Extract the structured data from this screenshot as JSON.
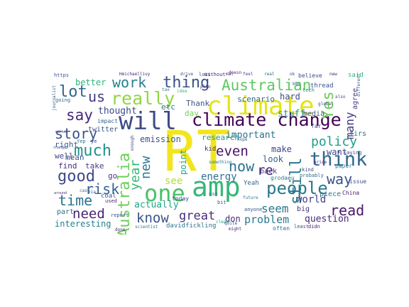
{
  "words": [
    {
      "id": "rt",
      "text": "RT",
      "color": "#f2e51d"
    },
    {
      "id": "amp",
      "text": "amp",
      "color": "#35b779"
    },
    {
      "id": "one",
      "text": "one",
      "color": "#4ac16d"
    },
    {
      "id": "climate",
      "text": "climate",
      "color": "#e5e419"
    },
    {
      "id": "climate-change",
      "text": "climate change",
      "color": "#440154"
    },
    {
      "id": "will",
      "text": "will",
      "color": "#3e4a89"
    },
    {
      "id": "think",
      "text": "think",
      "color": "#31688e"
    },
    {
      "id": "people",
      "text": "people",
      "color": "#2a788e"
    },
    {
      "id": "australia",
      "text": "Australia",
      "color": "#6ece58"
    },
    {
      "id": "australian",
      "text": "Australian",
      "color": "#5ec962"
    },
    {
      "id": "really",
      "text": "really",
      "color": "#90d743"
    },
    {
      "id": "thing",
      "text": "thing",
      "color": "#3b528b"
    },
    {
      "id": "work",
      "text": "work",
      "color": "#26828e"
    },
    {
      "id": "lot",
      "text": "lot",
      "color": "#31688e"
    },
    {
      "id": "us",
      "text": "us",
      "color": "#443983"
    },
    {
      "id": "say",
      "text": "say",
      "color": "#482878"
    },
    {
      "id": "story",
      "text": "story",
      "color": "#3b528b"
    },
    {
      "id": "much",
      "text": "much",
      "color": "#21918c"
    },
    {
      "id": "good",
      "text": "good",
      "color": "#3e4a89"
    },
    {
      "id": "new",
      "text": "new",
      "color": "#2a788e"
    },
    {
      "id": "year",
      "text": "year",
      "color": "#35b779"
    },
    {
      "id": "time",
      "text": "time",
      "color": "#2c728e"
    },
    {
      "id": "risk",
      "text": "risk",
      "color": "#33638d"
    },
    {
      "id": "need",
      "text": "need",
      "color": "#482475"
    },
    {
      "id": "know",
      "text": "know",
      "color": "#3b528b"
    },
    {
      "id": "great",
      "text": "great",
      "color": "#472d7b"
    },
    {
      "id": "even",
      "text": "even",
      "color": "#471365"
    },
    {
      "id": "now",
      "text": "now",
      "color": "#2d708e"
    },
    {
      "id": "re",
      "text": "re",
      "color": "#482878"
    },
    {
      "id": "energy",
      "text": "energy",
      "color": "#2c728e"
    },
    {
      "id": "see",
      "text": "see",
      "color": "#b5de2b"
    },
    {
      "id": "yes",
      "text": "Yes",
      "color": "#6ece58"
    },
    {
      "id": "policy",
      "text": "policy",
      "color": "#1f9e89"
    },
    {
      "id": "still",
      "text": "still",
      "color": "#2a788e"
    },
    {
      "id": "many",
      "text": "many",
      "color": "#453781"
    },
    {
      "id": "way",
      "text": "way",
      "color": "#3b528b"
    },
    {
      "id": "read",
      "text": "read",
      "color": "#481a6c"
    },
    {
      "id": "seem",
      "text": "seem",
      "color": "#2a788e"
    },
    {
      "id": "problem",
      "text": "problem",
      "color": "#2a788e"
    },
    {
      "id": "world",
      "text": "world",
      "color": "#433e85"
    },
    {
      "id": "question",
      "text": "question",
      "color": "#472a7a"
    },
    {
      "id": "important",
      "text": "important",
      "color": "#2d708e"
    },
    {
      "id": "actually",
      "text": "actually",
      "color": "#20a486"
    },
    {
      "id": "interesting",
      "text": "interesting",
      "color": "#25838e"
    },
    {
      "id": "thought",
      "text": "thought",
      "color": "#3e4989"
    },
    {
      "id": "emission",
      "text": "emission",
      "color": "#3b528b"
    },
    {
      "id": "research",
      "text": "research",
      "color": "#1f9a8a"
    },
    {
      "id": "stuff",
      "text": "stuff",
      "color": "#21918c"
    },
    {
      "id": "hard",
      "text": "hard",
      "color": "#3e4a89"
    },
    {
      "id": "make",
      "text": "make",
      "color": "#414487"
    },
    {
      "id": "look",
      "text": "look",
      "color": "#355f8d"
    },
    {
      "id": "point",
      "text": "point",
      "color": "#22a884"
    },
    {
      "id": "better",
      "text": "better",
      "color": "#2fb47c"
    },
    {
      "id": "mean",
      "text": "mean",
      "color": "#3b528b"
    },
    {
      "id": "find",
      "text": "find",
      "color": "#482878"
    },
    {
      "id": "take",
      "text": "take",
      "color": "#443a83"
    },
    {
      "id": "right",
      "text": "right",
      "color": "#355f8d"
    },
    {
      "id": "well",
      "text": "well",
      "color": "#3f4889"
    },
    {
      "id": "go",
      "text": "go",
      "color": "#453882"
    },
    {
      "id": "part",
      "text": "part",
      "color": "#2f6c8e"
    },
    {
      "id": "thank",
      "text": "Thank",
      "color": "#38588c"
    },
    {
      "id": "day",
      "text": "day",
      "color": "#7ad151"
    },
    {
      "id": "etc",
      "text": "etc",
      "color": "#2a788e"
    },
    {
      "id": "scenario",
      "text": "scenario",
      "color": "#31688e"
    },
    {
      "id": "don",
      "text": "don",
      "color": "#482878"
    },
    {
      "id": "davidfickling",
      "text": "davidfickling",
      "color": "#2c728e"
    },
    {
      "id": "twitter",
      "text": "twitter",
      "color": "#3b528b"
    },
    {
      "id": "piece",
      "text": "piece",
      "color": "#2a788e"
    },
    {
      "id": "want",
      "text": "want",
      "color": "#3e4a89"
    },
    {
      "id": "back",
      "text": "back",
      "color": "#443983"
    },
    {
      "id": "media",
      "text": "media",
      "color": "#38598c"
    },
    {
      "id": "first",
      "text": "first",
      "color": "#2d708e"
    },
    {
      "id": "big",
      "text": "big",
      "color": "#46337e"
    },
    {
      "id": "china",
      "text": "China",
      "color": "#482475"
    },
    {
      "id": "issue",
      "text": "issue",
      "color": "#3b528b"
    },
    {
      "id": "yeah",
      "text": "Yeah",
      "color": "#31688e"
    },
    {
      "id": "today",
      "text": "today",
      "color": "#3e4a89"
    },
    {
      "id": "kid",
      "text": "kid",
      "color": "#482878"
    },
    {
      "id": "paper",
      "text": "paper",
      "color": "#2a788e"
    },
    {
      "id": "thread",
      "text": "thread",
      "color": "#3b528b"
    },
    {
      "id": "believe",
      "text": "believe",
      "color": "#3e4989"
    },
    {
      "id": "said",
      "text": "said",
      "color": "#2fb47c"
    },
    {
      "id": "agree",
      "text": "agree",
      "color": "#433e85"
    },
    {
      "id": "https",
      "text": "https",
      "color": "#3b528b"
    },
    {
      "id": "coal",
      "text": "coal",
      "color": "#38588c"
    },
    {
      "id": "used",
      "text": "used",
      "color": "#482878"
    },
    {
      "id": "impact",
      "text": "impact",
      "color": "#31688e"
    },
    {
      "id": "tech",
      "text": "tech",
      "color": "#26828e"
    },
    {
      "id": "lots",
      "text": "lots",
      "color": "#3b528b"
    },
    {
      "id": "without",
      "text": "without",
      "color": "#482878"
    },
    {
      "id": "often",
      "text": "often",
      "color": "#2d708e"
    },
    {
      "id": "least",
      "text": "least",
      "color": "#3e4a89"
    },
    {
      "id": "didn",
      "text": "didn",
      "color": "#482475"
    },
    {
      "id": "anyone",
      "text": "anyone",
      "color": "#3b528b"
    },
    {
      "id": "probably",
      "text": "probably",
      "color": "#31688e"
    },
    {
      "id": "kind",
      "text": "kind",
      "color": "#3e4a89"
    },
    {
      "id": "grodaeu",
      "text": "grodaeu",
      "color": "#2a788e"
    },
    {
      "id": "far",
      "text": "far",
      "color": "#433e85"
    },
    {
      "id": "going",
      "text": "going",
      "color": "#31688e"
    },
    {
      "id": "report",
      "text": "report",
      "color": "#3b528b"
    },
    {
      "id": "saying",
      "text": "saying",
      "color": "#3e4a89"
    },
    {
      "id": "might",
      "text": "might",
      "color": "#482878"
    },
    {
      "id": "use",
      "text": "use",
      "color": "#2c728e"
    },
    {
      "id": "something",
      "text": "something",
      "color": "#2a788e"
    },
    {
      "id": "bit",
      "text": "bit",
      "color": "#3b528b"
    },
    {
      "id": "around",
      "text": "around",
      "color": "#482878"
    },
    {
      "id": "journalist",
      "text": "journalist",
      "color": "#31688e"
    },
    {
      "id": "different",
      "text": "different",
      "color": "#3b528b"
    },
    {
      "id": "done",
      "text": "done",
      "color": "#482878"
    },
    {
      "id": "change-small",
      "text": "change",
      "color": "#3e4a89"
    },
    {
      "id": "scientist",
      "text": "scientist",
      "color": "#2a788e"
    },
    {
      "id": "idea",
      "text": "idea",
      "color": "#35b779"
    },
    {
      "id": "plan",
      "text": "plan",
      "color": "#482878"
    },
    {
      "id": "drive",
      "text": "drive",
      "color": "#3b528b"
    },
    {
      "id": "hope",
      "text": "hope",
      "color": "#31688e"
    },
    {
      "id": "future",
      "text": "future",
      "color": "#2a788e"
    },
    {
      "id": "global",
      "text": "global",
      "color": "#3e4a89"
    },
    {
      "id": "price",
      "text": "price",
      "color": "#482878"
    },
    {
      "id": "clean",
      "text": "clean",
      "color": "#1f9e89"
    },
    {
      "id": "quite",
      "text": "quite",
      "color": "#3b528b"
    },
    {
      "id": "real",
      "text": "real",
      "color": "#31688e"
    },
    {
      "id": "market",
      "text": "market",
      "color": "#443983"
    },
    {
      "id": "feel",
      "text": "feel",
      "color": "#3e4a89"
    },
    {
      "id": "doesn",
      "text": "doesn",
      "color": "#482878"
    },
    {
      "id": "yep",
      "text": "Yep",
      "color": "#2a788e"
    },
    {
      "id": "ye",
      "text": "ye",
      "color": "#3b528b"
    },
    {
      "id": "case",
      "text": "case",
      "color": "#31688e"
    },
    {
      "id": "mal",
      "text": "mal",
      "color": "#482878"
    },
    {
      "id": "also",
      "text": "also",
      "color": "#3e4a89"
    },
    {
      "id": "via",
      "text": "via",
      "color": "#3b528b"
    },
    {
      "id": "hmichaelliuy",
      "text": "Hmichaelliuy",
      "color": "#482878"
    },
    {
      "id": "bad",
      "text": "bad",
      "color": "#31688e"
    },
    {
      "id": "tax",
      "text": "tax",
      "color": "#2a788e"
    },
    {
      "id": "ok",
      "text": "ok",
      "color": "#3e4a89"
    },
    {
      "id": "new-small",
      "text": "new",
      "color": "#482878"
    },
    {
      "id": "enough",
      "text": "enough",
      "color": "#3b528b"
    }
  ]
}
